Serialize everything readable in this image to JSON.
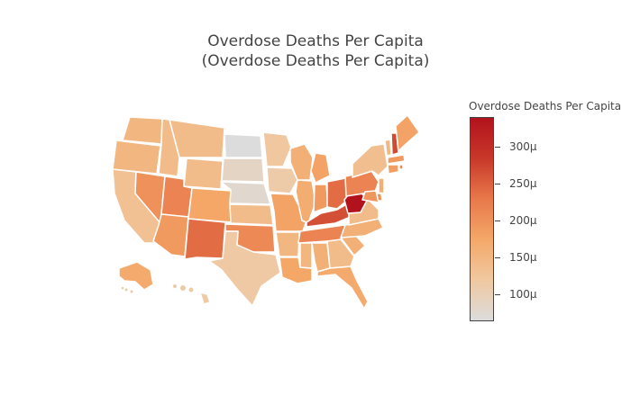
{
  "title": {
    "line1": "Overdose Deaths Per Capita",
    "line2": "(Overdose Deaths Per Capita)"
  },
  "colorbar": {
    "title": "Overdose Deaths Per Capita",
    "ticks": [
      "300μ",
      "250μ",
      "200μ",
      "150μ",
      "100μ"
    ],
    "tick_values": [
      300,
      250,
      200,
      150,
      100
    ],
    "range": [
      63,
      340
    ],
    "colors": [
      "#dcdcdc",
      "#f0c8a0",
      "#f4a868",
      "#e8784a",
      "#c8382a",
      "#b2121c"
    ]
  },
  "chart_data": {
    "type": "choropleth",
    "scale_unit": "μ",
    "values": {
      "WA": 150,
      "OR": 150,
      "CA": 130,
      "NV": 200,
      "ID": 140,
      "MT": 140,
      "WY": 140,
      "UT": 215,
      "AZ": 190,
      "CO": 175,
      "NM": 240,
      "ND": 63,
      "SD": 85,
      "NE": 75,
      "KS": 140,
      "OK": 210,
      "TX": 115,
      "MN": 120,
      "IA": 110,
      "MO": 180,
      "AR": 150,
      "LA": 175,
      "WI": 160,
      "IL": 165,
      "MI": 180,
      "IN": 190,
      "OH": 240,
      "KY": 265,
      "TN": 215,
      "MS": 150,
      "AL": 160,
      "GA": 140,
      "FL": 170,
      "SC": 160,
      "NC": 160,
      "VA": 140,
      "WV": 340,
      "PA": 215,
      "NY": 135,
      "VT": 145,
      "NH": 270,
      "ME": 180,
      "MA": 190,
      "RI": 210,
      "CT": 185,
      "NJ": 160,
      "DE": 200,
      "MD": 195,
      "AK": 170,
      "HI": 110
    }
  }
}
